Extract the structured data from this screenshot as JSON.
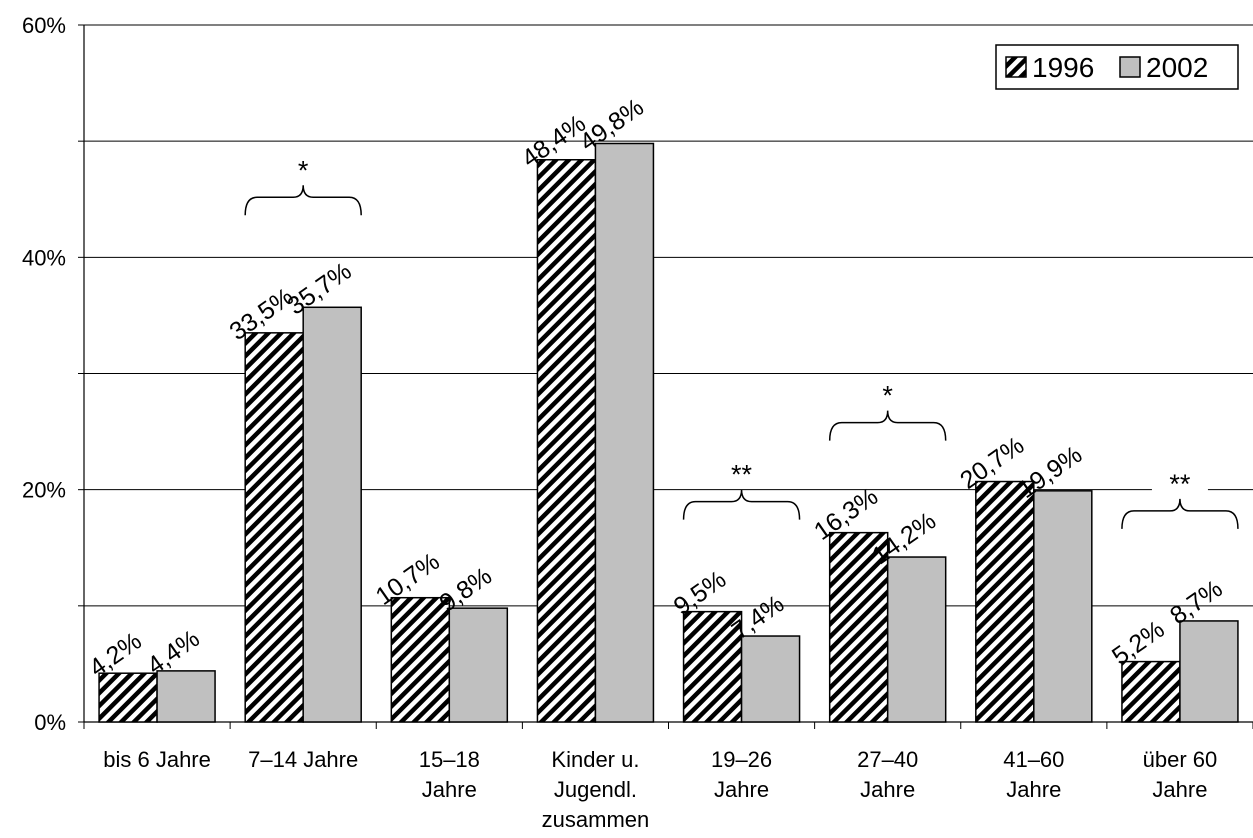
{
  "chart_data": {
    "type": "bar",
    "categories": [
      [
        "bis 6 Jahre"
      ],
      [
        "7–14 Jahre"
      ],
      [
        "15–18",
        "Jahre"
      ],
      [
        "Kinder u.",
        "Jugendl.",
        "zusammen"
      ],
      [
        "19–26",
        "Jahre"
      ],
      [
        "27–40",
        "Jahre"
      ],
      [
        "41–60",
        "Jahre"
      ],
      [
        "über 60",
        "Jahre"
      ]
    ],
    "series": [
      {
        "name": "1996",
        "pattern": "hatch",
        "values": [
          4.2,
          33.5,
          10.7,
          48.4,
          9.5,
          16.3,
          20.7,
          5.2
        ],
        "labels": [
          "4,2%",
          "33,5%",
          "10,7%",
          "48,4%",
          "9,5%",
          "16,3%",
          "20,7%",
          "5,2%"
        ]
      },
      {
        "name": "2002",
        "color": "#c0c0c0",
        "values": [
          4.4,
          35.7,
          9.8,
          49.8,
          7.4,
          14.2,
          19.9,
          8.7
        ],
        "labels": [
          "4,4%",
          "35,7%",
          "9,8%",
          "49,8%",
          "7,4%",
          "14,2%",
          "19,9%",
          "8,7%"
        ]
      }
    ],
    "y_ticks": [
      {
        "value": 0,
        "label": "0%"
      },
      {
        "value": 20,
        "label": "20%"
      },
      {
        "value": 40,
        "label": "40%"
      },
      {
        "value": 60,
        "label": "60%"
      }
    ],
    "gridlines": [
      10,
      20,
      30,
      40,
      50,
      60
    ],
    "ylim": [
      0,
      60
    ],
    "title": "",
    "xlabel": "",
    "ylabel": "",
    "legend": {
      "placement": "top-right"
    },
    "significance": [
      {
        "category_index": 1,
        "label": "*"
      },
      {
        "category_index": 4,
        "label": "**"
      },
      {
        "category_index": 5,
        "label": "*"
      },
      {
        "category_index": 7,
        "label": "**"
      }
    ]
  }
}
